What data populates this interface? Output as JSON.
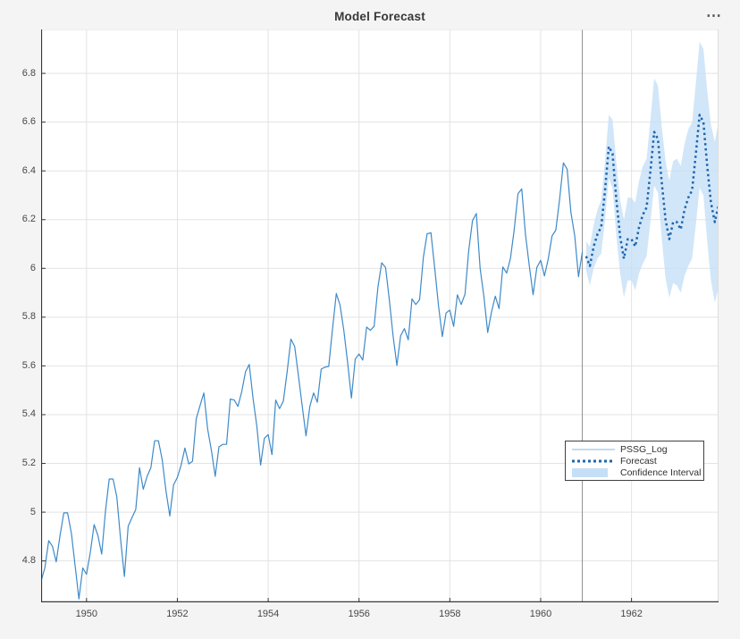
{
  "figure": {
    "title": "Model Forecast",
    "toolbar_icon": "⋯",
    "background": "#f4f4f4",
    "plot_background": "#ffffff"
  },
  "colors": {
    "observed": "#3e8ac9",
    "forecast": "#1e66ae",
    "confidence": "#c5e0f6",
    "grid": "#e3e3e3",
    "forecast_start_line": "#8f8f8f",
    "axis": "#383838",
    "tick_text": "#474747",
    "title_text": "#383838",
    "legend_border": "#404040"
  },
  "axes": {
    "xlim": [
      1949.0,
      1963.9167
    ],
    "ylim": [
      4.63,
      6.98
    ],
    "xticks": [
      1950,
      1952,
      1954,
      1956,
      1958,
      1960,
      1962
    ],
    "yticks": [
      4.8,
      5.0,
      5.2,
      5.4,
      5.6,
      5.8,
      6.0,
      6.2,
      6.4,
      6.6,
      6.8
    ],
    "forecast_start_x": 1960.9167,
    "grid": "on"
  },
  "legend": {
    "position": "inside-right",
    "items": [
      {
        "label": "PSSG_Log",
        "sample": "line"
      },
      {
        "label": "Forecast",
        "sample": "dotted-line"
      },
      {
        "label": "Confidence Interval",
        "sample": "patch"
      }
    ]
  },
  "chart_data": {
    "type": "line",
    "title": "Model Forecast",
    "xlabel": "",
    "ylabel": "",
    "x_unit": "year, monthly samples",
    "xlim": [
      1949.0,
      1963.9167
    ],
    "ylim": [
      4.63,
      6.98
    ],
    "series": [
      {
        "name": "PSSG_Log",
        "style": "solid",
        "color_key": "observed",
        "x_start": 1949.0,
        "x_step": 0.0833333,
        "values": [
          4.718,
          4.771,
          4.883,
          4.86,
          4.796,
          4.905,
          4.997,
          4.997,
          4.913,
          4.779,
          4.644,
          4.771,
          4.745,
          4.836,
          4.949,
          4.905,
          4.828,
          5.004,
          5.136,
          5.136,
          5.063,
          4.89,
          4.736,
          4.942,
          4.977,
          5.011,
          5.182,
          5.094,
          5.147,
          5.182,
          5.293,
          5.293,
          5.215,
          5.088,
          4.984,
          5.112,
          5.142,
          5.193,
          5.263,
          5.198,
          5.209,
          5.384,
          5.438,
          5.489,
          5.342,
          5.252,
          5.147,
          5.268,
          5.278,
          5.278,
          5.464,
          5.46,
          5.434,
          5.493,
          5.576,
          5.606,
          5.468,
          5.352,
          5.193,
          5.303,
          5.318,
          5.236,
          5.46,
          5.425,
          5.455,
          5.576,
          5.71,
          5.68,
          5.557,
          5.434,
          5.313,
          5.434,
          5.489,
          5.451,
          5.587,
          5.595,
          5.598,
          5.753,
          5.897,
          5.849,
          5.743,
          5.613,
          5.468,
          5.628,
          5.649,
          5.624,
          5.759,
          5.746,
          5.762,
          5.924,
          6.023,
          6.004,
          5.872,
          5.724,
          5.602,
          5.724,
          5.753,
          5.707,
          5.875,
          5.852,
          5.872,
          6.045,
          6.142,
          6.146,
          6.001,
          5.849,
          5.72,
          5.817,
          5.829,
          5.762,
          5.892,
          5.852,
          5.894,
          6.075,
          6.196,
          6.225,
          6.001,
          5.883,
          5.737,
          5.82,
          5.886,
          5.835,
          6.006,
          5.981,
          6.04,
          6.157,
          6.306,
          6.326,
          6.138,
          6.009,
          5.892,
          6.004,
          6.033,
          5.969,
          6.038,
          6.133,
          6.157,
          6.282,
          6.433,
          6.407,
          6.23,
          6.133,
          5.966,
          6.068
        ]
      },
      {
        "name": "Forecast",
        "style": "dotted",
        "color_key": "forecast",
        "x_start": 1961.0,
        "x_step": 0.0833333,
        "values": [
          6.05,
          6.01,
          6.09,
          6.14,
          6.17,
          6.32,
          6.5,
          6.47,
          6.28,
          6.13,
          6.04,
          6.12,
          6.12,
          6.09,
          6.17,
          6.22,
          6.25,
          6.4,
          6.56,
          6.53,
          6.35,
          6.2,
          6.12,
          6.19,
          6.19,
          6.16,
          6.24,
          6.29,
          6.32,
          6.47,
          6.63,
          6.6,
          6.42,
          6.27,
          6.19,
          6.26
        ]
      }
    ],
    "confidence_interval": {
      "name": "Confidence Interval",
      "color_key": "confidence",
      "x_start": 1961.0,
      "x_step": 0.0833333,
      "upper": [
        6.11,
        6.09,
        6.18,
        6.24,
        6.28,
        6.44,
        6.63,
        6.61,
        6.43,
        6.28,
        6.2,
        6.29,
        6.29,
        6.27,
        6.36,
        6.42,
        6.45,
        6.61,
        6.78,
        6.75,
        6.58,
        6.44,
        6.36,
        6.44,
        6.45,
        6.42,
        6.51,
        6.57,
        6.6,
        6.76,
        6.93,
        6.9,
        6.73,
        6.59,
        6.52,
        6.6
      ],
      "lower": [
        5.99,
        5.93,
        6.0,
        6.04,
        6.06,
        6.2,
        6.37,
        6.33,
        6.13,
        5.98,
        5.88,
        5.95,
        5.95,
        5.91,
        5.98,
        6.02,
        6.05,
        6.19,
        6.34,
        6.31,
        6.12,
        5.96,
        5.88,
        5.94,
        5.93,
        5.9,
        5.97,
        6.01,
        6.04,
        6.18,
        6.33,
        6.3,
        6.11,
        5.95,
        5.86,
        5.92
      ]
    }
  }
}
